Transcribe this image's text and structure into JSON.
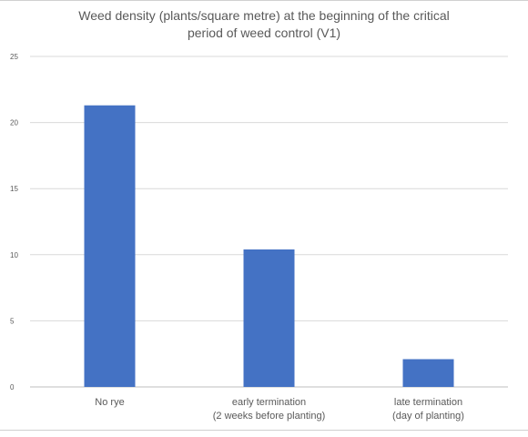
{
  "chart_data": {
    "type": "bar",
    "title_lines": [
      "Weed density (plants/square metre) at the beginning of the critical",
      "period of weed control (V1)"
    ],
    "categories": [
      [
        "No rye"
      ],
      [
        "early termination",
        "(2 weeks before planting)"
      ],
      [
        "late termination",
        "(day of planting)"
      ]
    ],
    "values": [
      21.3,
      10.4,
      2.1
    ],
    "ylim": [
      0,
      25
    ],
    "yticks": [
      0,
      5,
      10,
      15,
      20,
      25
    ],
    "grid": true,
    "legend": "none",
    "bar_color": "#4472c4",
    "grid_color": "#d9d9d9",
    "axis_color": "#bfbfbf"
  }
}
